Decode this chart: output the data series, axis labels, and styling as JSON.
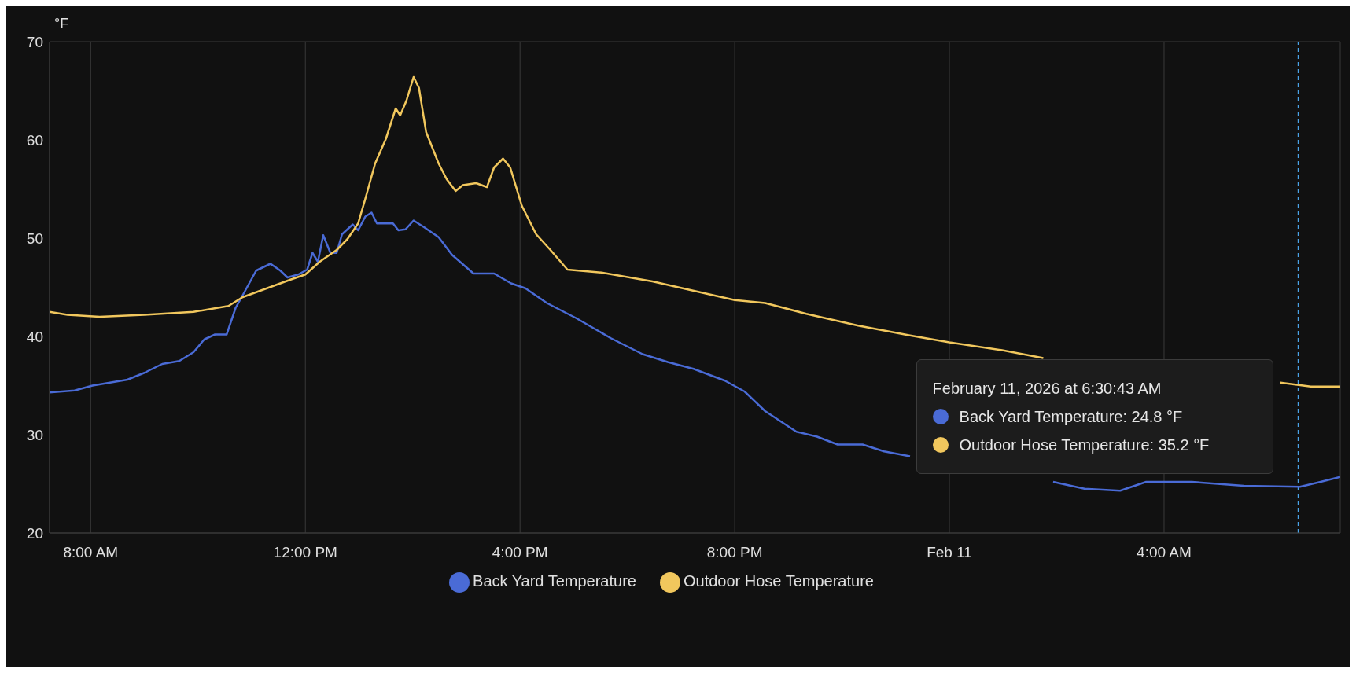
{
  "chart_data": {
    "type": "line",
    "ylabel": "°F",
    "xlim": [
      "2026-02-10T07:14",
      "2026-02-11T07:17"
    ],
    "xticks": [
      {
        "value": "2026-02-10T08:00",
        "label": "8:00 AM"
      },
      {
        "value": "2026-02-10T12:00",
        "label": "12:00 PM"
      },
      {
        "value": "2026-02-10T16:00",
        "label": "4:00 PM"
      },
      {
        "value": "2026-02-10T20:00",
        "label": "8:00 PM"
      },
      {
        "value": "2026-02-11T00:00",
        "label": "Feb 11"
      },
      {
        "value": "2026-02-11T04:00",
        "label": "4:00 AM"
      }
    ],
    "ylim": [
      20,
      70
    ],
    "yticks": [
      20,
      30,
      40,
      50,
      60,
      70
    ],
    "grid": true,
    "legend": "bottom",
    "marker": "none",
    "line_style": "solid",
    "series": [
      {
        "name": "Back Yard Temperature",
        "color": "#4a6bd6",
        "x": [
          "2026-02-10T07:14",
          "2026-02-10T07:42",
          "2026-02-10T08:02",
          "2026-02-10T08:41",
          "2026-02-10T09:00",
          "2026-02-10T09:20",
          "2026-02-10T09:39",
          "2026-02-10T09:55",
          "2026-02-10T10:07",
          "2026-02-10T10:19",
          "2026-02-10T10:32",
          "2026-02-10T10:42",
          "2026-02-10T10:50",
          "2026-02-10T11:05",
          "2026-02-10T11:21",
          "2026-02-10T11:32",
          "2026-02-10T11:40",
          "2026-02-10T11:52",
          "2026-02-10T12:02",
          "2026-02-10T12:08",
          "2026-02-10T12:14",
          "2026-02-10T12:20",
          "2026-02-10T12:28",
          "2026-02-10T12:35",
          "2026-02-10T12:41",
          "2026-02-10T12:53",
          "2026-02-10T12:59",
          "2026-02-10T13:07",
          "2026-02-10T13:14",
          "2026-02-10T13:20",
          "2026-02-10T13:38",
          "2026-02-10T13:44",
          "2026-02-10T13:52",
          "2026-02-10T14:01",
          "2026-02-10T14:13",
          "2026-02-10T14:29",
          "2026-02-10T14:44",
          "2026-02-10T15:08",
          "2026-02-10T15:31",
          "2026-02-10T15:50",
          "2026-02-10T16:06",
          "2026-02-10T16:30",
          "2026-02-10T16:49",
          "2026-02-10T17:02",
          "2026-02-10T17:42",
          "2026-02-10T18:17",
          "2026-02-10T18:45",
          "2026-02-10T19:14",
          "2026-02-10T19:49",
          "2026-02-10T20:11",
          "2026-02-10T20:34",
          "2026-02-10T21:09",
          "2026-02-10T21:32",
          "2026-02-10T21:55",
          "2026-02-10T22:23",
          "2026-02-10T22:47",
          "2026-02-10T23:16",
          "2026-02-11T00:30",
          "2026-02-11T01:56",
          "2026-02-11T02:31",
          "2026-02-11T03:11",
          "2026-02-11T03:40",
          "2026-02-11T04:31",
          "2026-02-11T05:29",
          "2026-02-11T06:32",
          "2026-02-11T06:55",
          "2026-02-11T07:17"
        ],
        "values": [
          34.3,
          34.5,
          35.0,
          35.6,
          36.3,
          37.2,
          37.5,
          38.4,
          39.7,
          40.2,
          40.2,
          42.9,
          44.2,
          46.7,
          47.4,
          46.7,
          46.0,
          46.3,
          46.8,
          48.5,
          47.6,
          50.3,
          48.5,
          48.5,
          50.4,
          51.4,
          50.8,
          52.2,
          52.6,
          51.5,
          51.5,
          50.8,
          50.9,
          51.8,
          51.1,
          50.1,
          48.3,
          46.4,
          46.4,
          45.4,
          44.9,
          43.4,
          42.5,
          41.9,
          39.8,
          38.2,
          37.4,
          36.7,
          35.5,
          34.4,
          32.4,
          30.3,
          29.8,
          29.0,
          29.0,
          28.3,
          27.8,
          null,
          25.2,
          24.5,
          24.3,
          25.2,
          25.2,
          24.8,
          24.7,
          25.2,
          25.7
        ]
      },
      {
        "name": "Outdoor Hose Temperature",
        "color": "#f1c75d",
        "x": [
          "2026-02-10T07:14",
          "2026-02-10T07:34",
          "2026-02-10T08:10",
          "2026-02-10T09:00",
          "2026-02-10T09:55",
          "2026-02-10T10:34",
          "2026-02-10T10:50",
          "2026-02-10T11:17",
          "2026-02-10T11:44",
          "2026-02-10T12:00",
          "2026-02-10T12:16",
          "2026-02-10T12:35",
          "2026-02-10T12:47",
          "2026-02-10T12:59",
          "2026-02-10T13:07",
          "2026-02-10T13:18",
          "2026-02-10T13:30",
          "2026-02-10T13:41",
          "2026-02-10T13:46",
          "2026-02-10T13:53",
          "2026-02-10T14:01",
          "2026-02-10T14:07",
          "2026-02-10T14:15",
          "2026-02-10T14:29",
          "2026-02-10T14:38",
          "2026-02-10T14:48",
          "2026-02-10T14:56",
          "2026-02-10T15:11",
          "2026-02-10T15:23",
          "2026-02-10T15:31",
          "2026-02-10T15:41",
          "2026-02-10T15:49",
          "2026-02-10T16:02",
          "2026-02-10T16:18",
          "2026-02-10T16:34",
          "2026-02-10T16:53",
          "2026-02-10T17:31",
          "2026-02-10T18:28",
          "2026-02-10T19:26",
          "2026-02-10T20:00",
          "2026-02-10T20:34",
          "2026-02-10T21:20",
          "2026-02-10T22:18",
          "2026-02-10T23:16",
          "2026-02-11T00:00",
          "2026-02-11T00:59",
          "2026-02-11T01:45",
          "2026-02-11T04:00",
          "2026-02-11T06:10",
          "2026-02-11T06:44",
          "2026-02-11T07:17"
        ],
        "values": [
          42.5,
          42.2,
          42.0,
          42.2,
          42.5,
          43.1,
          44.0,
          44.9,
          45.8,
          46.3,
          47.6,
          48.8,
          49.9,
          51.5,
          54.0,
          57.6,
          60.1,
          63.2,
          62.5,
          64.0,
          66.4,
          65.3,
          60.8,
          57.6,
          56.0,
          54.8,
          55.4,
          55.6,
          55.2,
          57.2,
          58.1,
          57.2,
          53.3,
          50.4,
          48.8,
          46.8,
          46.5,
          45.6,
          44.4,
          43.7,
          43.4,
          42.3,
          41.1,
          40.1,
          39.4,
          38.6,
          37.8,
          null,
          35.3,
          34.9,
          34.9
        ]
      }
    ],
    "ref_lines": [
      {
        "axis": "x",
        "value": "2026-02-11T06:30",
        "color": "#4aa3e8",
        "line_style": "dashed"
      }
    ],
    "annotations": [
      "February 11, 2026 at 6:30:43 AM",
      "Back Yard Temperature: 24.8 °F",
      "Outdoor Hose Temperature: 35.2 °F"
    ]
  }
}
